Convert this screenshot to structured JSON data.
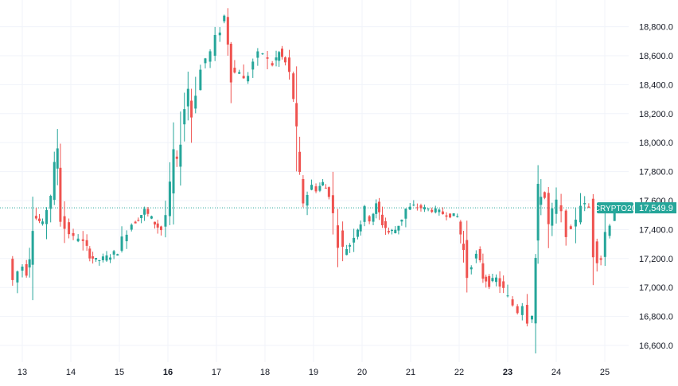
{
  "chart_data": {
    "type": "candlestick",
    "title": "",
    "xlabel": "",
    "ylabel": "",
    "symbol_label": "CRYPTO20",
    "last_price_label": "17,549.9",
    "last_price": 17549.9,
    "ylim": [
      16520,
      19000
    ],
    "xlim": [
      12.72,
      25.55
    ],
    "grid": true,
    "colors": {
      "up": "#26a69a",
      "down": "#ef5350",
      "grid": "#f0f3fa",
      "last_line": "#26a69a",
      "text": "#131722"
    },
    "y_ticks": [
      {
        "value": 16600,
        "label": "16,600.0"
      },
      {
        "value": 16800,
        "label": "16,800.0"
      },
      {
        "value": 17000,
        "label": "17,000.0"
      },
      {
        "value": 17200,
        "label": "17,200.0"
      },
      {
        "value": 17400,
        "label": "17,400.0"
      },
      {
        "value": 17600,
        "label": "17,600.0"
      },
      {
        "value": 17800,
        "label": "17,800.0"
      },
      {
        "value": 18000,
        "label": "18,000.0"
      },
      {
        "value": 18200,
        "label": "18,200.0"
      },
      {
        "value": 18400,
        "label": "18,400.0"
      },
      {
        "value": 18600,
        "label": "18,600.0"
      },
      {
        "value": 18800,
        "label": "18,800.0"
      }
    ],
    "x_ticks": [
      {
        "value": 13,
        "label": "13",
        "bold": false
      },
      {
        "value": 14,
        "label": "14",
        "bold": false
      },
      {
        "value": 15,
        "label": "15",
        "bold": false
      },
      {
        "value": 16,
        "label": "16",
        "bold": true
      },
      {
        "value": 17,
        "label": "17",
        "bold": false
      },
      {
        "value": 18,
        "label": "18",
        "bold": false
      },
      {
        "value": 19,
        "label": "19",
        "bold": false
      },
      {
        "value": 20,
        "label": "20",
        "bold": false
      },
      {
        "value": 21,
        "label": "21",
        "bold": false
      },
      {
        "value": 22,
        "label": "22",
        "bold": false
      },
      {
        "value": 23,
        "label": "23",
        "bold": true
      },
      {
        "value": 24,
        "label": "24",
        "bold": false
      },
      {
        "value": 25,
        "label": "25",
        "bold": false
      }
    ],
    "close_path": [
      [
        12.75,
        17200
      ],
      [
        12.85,
        17040
      ],
      [
        12.95,
        17110
      ],
      [
        13.05,
        17150
      ],
      [
        13.12,
        17110
      ],
      [
        13.18,
        17250
      ],
      [
        13.25,
        17520
      ],
      [
        13.32,
        17480
      ],
      [
        13.45,
        17430
      ],
      [
        13.55,
        17560
      ],
      [
        13.62,
        17650
      ],
      [
        13.7,
        17800
      ],
      [
        13.75,
        17980
      ],
      [
        13.82,
        17570
      ],
      [
        13.92,
        17420
      ],
      [
        14.0,
        17380
      ],
      [
        14.1,
        17330
      ],
      [
        14.2,
        17350
      ],
      [
        14.3,
        17300
      ],
      [
        14.42,
        17230
      ],
      [
        14.55,
        17180
      ],
      [
        14.7,
        17200
      ],
      [
        14.85,
        17220
      ],
      [
        15.0,
        17250
      ],
      [
        15.1,
        17320
      ],
      [
        15.2,
        17420
      ],
      [
        15.3,
        17440
      ],
      [
        15.42,
        17480
      ],
      [
        15.55,
        17530
      ],
      [
        15.7,
        17470
      ],
      [
        15.82,
        17420
      ],
      [
        15.9,
        17400
      ],
      [
        16.0,
        17500
      ],
      [
        16.08,
        17650
      ],
      [
        16.15,
        17900
      ],
      [
        16.22,
        17850
      ],
      [
        16.3,
        18100
      ],
      [
        16.38,
        18250
      ],
      [
        16.45,
        18380
      ],
      [
        16.52,
        18200
      ],
      [
        16.62,
        18400
      ],
      [
        16.72,
        18500
      ],
      [
        16.82,
        18580
      ],
      [
        16.92,
        18620
      ],
      [
        17.02,
        18700
      ],
      [
        17.12,
        18800
      ],
      [
        17.2,
        18870
      ],
      [
        17.27,
        18720
      ],
      [
        17.33,
        18520
      ],
      [
        17.42,
        18480
      ],
      [
        17.52,
        18500
      ],
      [
        17.6,
        18420
      ],
      [
        17.7,
        18480
      ],
      [
        17.8,
        18560
      ],
      [
        17.9,
        18600
      ],
      [
        18.0,
        18620
      ],
      [
        18.1,
        18560
      ],
      [
        18.2,
        18540
      ],
      [
        18.32,
        18620
      ],
      [
        18.45,
        18550
      ],
      [
        18.55,
        18460
      ],
      [
        18.62,
        18320
      ],
      [
        18.68,
        17950
      ],
      [
        18.75,
        17700
      ],
      [
        18.82,
        17600
      ],
      [
        18.92,
        17650
      ],
      [
        19.0,
        17700
      ],
      [
        19.1,
        17680
      ],
      [
        19.22,
        17720
      ],
      [
        19.35,
        17650
      ],
      [
        19.45,
        17480
      ],
      [
        19.55,
        17350
      ],
      [
        19.65,
        17250
      ],
      [
        19.78,
        17300
      ],
      [
        19.88,
        17380
      ],
      [
        20.0,
        17450
      ],
      [
        20.1,
        17520
      ],
      [
        20.2,
        17480
      ],
      [
        20.32,
        17560
      ],
      [
        20.45,
        17450
      ],
      [
        20.58,
        17380
      ],
      [
        20.72,
        17400
      ],
      [
        20.85,
        17480
      ],
      [
        20.95,
        17540
      ],
      [
        21.1,
        17560
      ],
      [
        21.25,
        17550
      ],
      [
        21.4,
        17540
      ],
      [
        21.55,
        17530
      ],
      [
        21.7,
        17510
      ],
      [
        21.85,
        17500
      ],
      [
        22.0,
        17490
      ],
      [
        22.12,
        17250
      ],
      [
        22.2,
        17100
      ],
      [
        22.3,
        17200
      ],
      [
        22.4,
        17220
      ],
      [
        22.52,
        17080
      ],
      [
        22.65,
        17030
      ],
      [
        22.8,
        17060
      ],
      [
        22.95,
        16980
      ],
      [
        23.05,
        16920
      ],
      [
        23.15,
        16880
      ],
      [
        23.25,
        16840
      ],
      [
        23.35,
        16900
      ],
      [
        23.45,
        16800
      ],
      [
        23.55,
        16820
      ],
      [
        23.6,
        17200
      ],
      [
        23.65,
        17550
      ],
      [
        23.72,
        17680
      ],
      [
        23.8,
        17620
      ],
      [
        23.88,
        17400
      ],
      [
        23.95,
        17500
      ],
      [
        24.05,
        17580
      ],
      [
        24.15,
        17480
      ],
      [
        24.25,
        17400
      ],
      [
        24.35,
        17380
      ],
      [
        24.45,
        17500
      ],
      [
        24.55,
        17600
      ],
      [
        24.62,
        17560
      ],
      [
        24.72,
        17550
      ],
      [
        24.8,
        17300
      ],
      [
        24.88,
        17220
      ],
      [
        24.96,
        17200
      ],
      [
        25.05,
        17380
      ],
      [
        25.15,
        17470
      ],
      [
        25.25,
        17549.9
      ]
    ]
  }
}
